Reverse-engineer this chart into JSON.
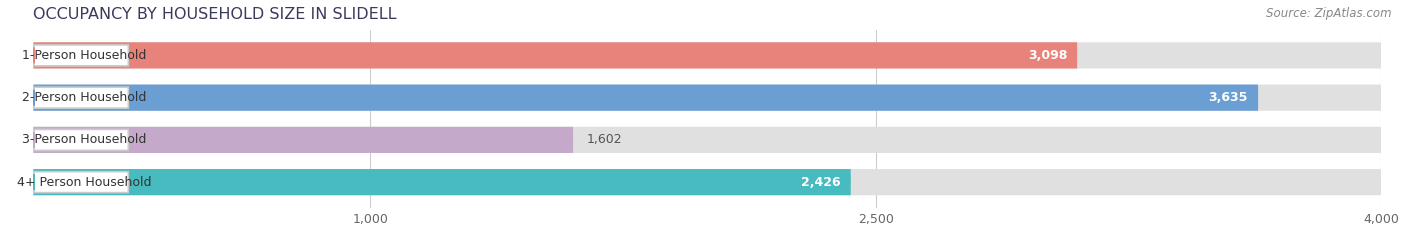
{
  "title": "OCCUPANCY BY HOUSEHOLD SIZE IN SLIDELL",
  "source": "Source: ZipAtlas.com",
  "categories": [
    "1-Person Household",
    "2-Person Household",
    "3-Person Household",
    "4+ Person Household"
  ],
  "values": [
    3098,
    3635,
    1602,
    2426
  ],
  "colors": [
    "#E8837B",
    "#6B9FD4",
    "#C5A9CB",
    "#47BBBF"
  ],
  "xlim_min": 0,
  "xlim_max": 4000,
  "xticks": [
    1000,
    2500,
    4000
  ],
  "bar_height": 0.62,
  "background_color": "#ffffff",
  "bar_bg_color": "#e8e8e8",
  "title_fontsize": 11.5,
  "label_fontsize": 9,
  "value_fontsize": 9,
  "source_fontsize": 8.5,
  "value_inside_threshold": 2000
}
